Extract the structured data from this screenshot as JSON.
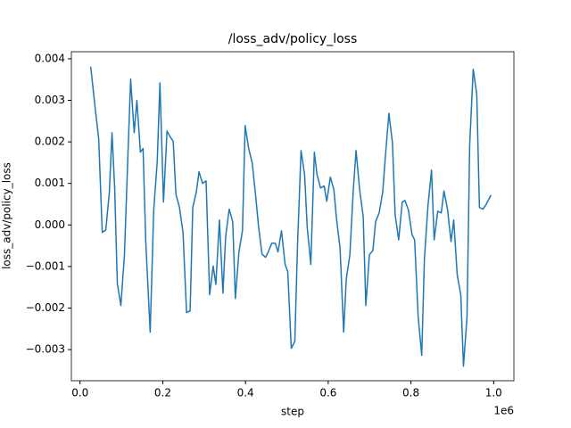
{
  "chart_data": {
    "type": "line",
    "title": "/loss_adv/policy_loss",
    "x_label": "step",
    "y_label": "loss_adv/policy_loss",
    "x_offset_label": "1e6",
    "xlim": [
      -21000,
      1049000
    ],
    "ylim": [
      -0.00375,
      0.00417
    ],
    "xticks": [
      {
        "value": 0,
        "label": "0.0"
      },
      {
        "value": 200000,
        "label": "0.2"
      },
      {
        "value": 400000,
        "label": "0.4"
      },
      {
        "value": 600000,
        "label": "0.6"
      },
      {
        "value": 800000,
        "label": "0.8"
      },
      {
        "value": 1000000,
        "label": "1.0"
      }
    ],
    "yticks": [
      {
        "value": -0.003,
        "label": "−0.003"
      },
      {
        "value": -0.002,
        "label": "−0.002"
      },
      {
        "value": -0.001,
        "label": "−0.001"
      },
      {
        "value": 0,
        "label": "0.000"
      },
      {
        "value": 0.001,
        "label": "0.001"
      },
      {
        "value": 0.002,
        "label": "0.002"
      },
      {
        "value": 0.003,
        "label": "0.003"
      },
      {
        "value": 0.004,
        "label": "0.004"
      }
    ],
    "grid": false,
    "series": [
      {
        "color": "#1f77b4",
        "x": [
          25750,
          36480,
          45060,
          53650,
          62230,
          70820,
          77250,
          83690,
          90130,
          98710,
          107300,
          113730,
          122320,
          130900,
          137340,
          145920,
          152360,
          158800,
          169530,
          178110,
          186700,
          193130,
          201720,
          210300,
          216740,
          225320,
          231760,
          240340,
          248930,
          257510,
          266090,
          272530,
          281120,
          287550,
          296140,
          304720,
          313300,
          321890,
          328330,
          336910,
          345490,
          351930,
          360520,
          369100,
          375540,
          384120,
          392700,
          399140,
          407730,
          416310,
          424890,
          431330,
          439910,
          448500,
          454940,
          463520,
          472100,
          478540,
          487120,
          495710,
          502150,
          510730,
          519310,
          525750,
          534330,
          542920,
          549360,
          557940,
          566520,
          572960,
          581550,
          590130,
          596570,
          605150,
          613730,
          620170,
          628760,
          637340,
          643780,
          652360,
          660940,
          667380,
          675970,
          684550,
          690990,
          699570,
          708150,
          714590,
          723180,
          731760,
          738200,
          746780,
          755360,
          761800,
          770390,
          778970,
          785410,
          793990,
          802580,
          809010,
          817600,
          826180,
          832620,
          841200,
          849790,
          856220,
          864810,
          873390,
          879830,
          888410,
          897000,
          903430,
          912020,
          920600,
          927040,
          935620,
          942060,
          950640,
          959230,
          965670,
          974250,
          982830,
          993560
        ],
        "values": [
          0.00381,
          0.00282,
          0.00207,
          -0.00018,
          -0.00012,
          0.00079,
          0.00222,
          0.00089,
          -0.00141,
          -0.00194,
          -0.00072,
          0.00111,
          0.00351,
          0.00222,
          0.003,
          0.00175,
          0.00184,
          -0.00039,
          -0.00258,
          0.00036,
          0.00154,
          0.00342,
          0.00055,
          0.00226,
          0.00214,
          0.00201,
          0.00074,
          0.00042,
          -0.00018,
          -0.00211,
          -0.00207,
          0.00042,
          0.00079,
          0.00128,
          0.001,
          0.00106,
          -0.00168,
          -0.00099,
          -0.00143,
          0.00012,
          -0.00164,
          -0.00029,
          0.00038,
          8e-05,
          -0.00177,
          -0.00065,
          -0.00014,
          0.00239,
          0.00184,
          0.00149,
          0.00067,
          -1e-05,
          -0.0007,
          -0.00078,
          -0.00065,
          -0.00044,
          -0.00044,
          -0.00065,
          -0.00014,
          -0.00095,
          -0.00112,
          -0.00297,
          -0.0028,
          -0.0005,
          0.00179,
          0.00121,
          -7e-05,
          -0.00095,
          0.00175,
          0.00121,
          0.00089,
          0.00094,
          0.00057,
          0.00115,
          0.00085,
          0.00014,
          -0.00057,
          -0.00258,
          -0.00129,
          -0.00072,
          0.00089,
          0.00179,
          0.00085,
          0.00021,
          -0.00194,
          -0.00072,
          -0.00061,
          8e-05,
          0.00029,
          0.00079,
          0.00164,
          0.00269,
          0.00197,
          0.00025,
          -0.00036,
          0.00055,
          0.00059,
          0.00036,
          -0.00023,
          -0.00036,
          -0.00222,
          -0.00314,
          -0.00082,
          0.00046,
          0.00132,
          -0.00036,
          0.00033,
          0.00029,
          0.00082,
          0.00038,
          -0.0004,
          0.00012,
          -0.00121,
          -0.00168,
          -0.0034,
          -0.00222,
          0.00192,
          0.00375,
          0.00314,
          0.00042,
          0.00038,
          0.00051,
          0.00072
        ]
      }
    ]
  }
}
